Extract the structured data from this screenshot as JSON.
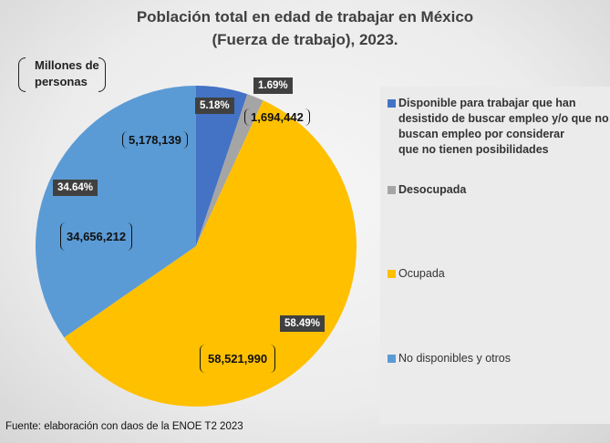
{
  "chart_data": {
    "type": "pie",
    "title_line1": "Población total en edad de trabajar en México",
    "title_line2": "(Fuerza de trabajo), 2023.",
    "unit_label": "Millones de personas",
    "legend_position": "right",
    "slices": [
      {
        "name": "Disponible para trabajar que han desistido de buscar empleo y/o que no buscan empleo por considerar que no tienen posibilidades",
        "value": 5178139,
        "value_label": "5,178,139",
        "percent": 5.18,
        "percent_label": "5.18%",
        "color": "#4472c4"
      },
      {
        "name": "Desocupada",
        "value": 1694442,
        "value_label": "1,694,442",
        "percent": 1.69,
        "percent_label": "1.69%",
        "color": "#a5a5a5"
      },
      {
        "name": "Ocupada",
        "value": 58521990,
        "value_label": "58,521,990",
        "percent": 58.49,
        "percent_label": "58.49%",
        "color": "#ffc000"
      },
      {
        "name": "No disponibles y otros",
        "value": 34656212,
        "value_label": "34,656,212",
        "percent": 34.64,
        "percent_label": "34.64%",
        "color": "#5b9bd5"
      }
    ],
    "legend_lines": [
      "Disponible para trabajar que han",
      "desistido de buscar empleo y/o que no",
      "buscan empleo por considerar",
      "que no tienen posibilidades"
    ]
  },
  "footer": "Fuente: elaboración con daos de la ENOE T2 2023"
}
